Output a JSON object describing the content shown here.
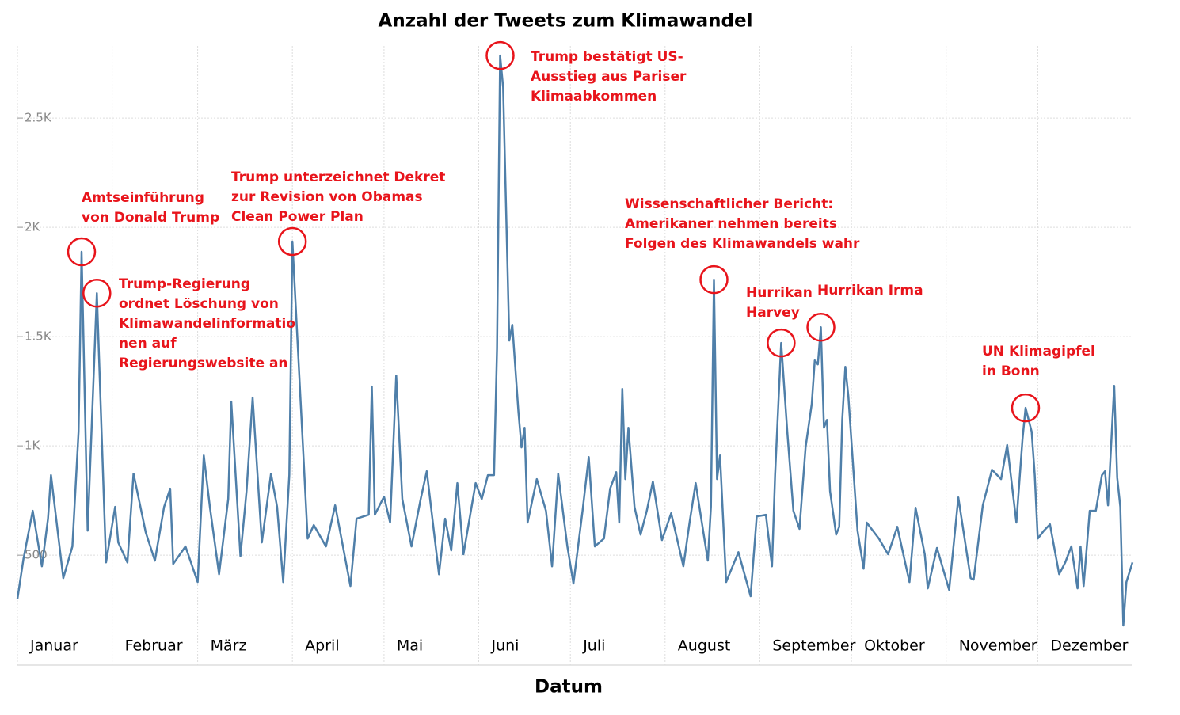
{
  "chart_data": {
    "type": "line",
    "title": "Anzahl der Tweets zum Klimawandel",
    "x_label": "Datum",
    "xlim": [
      0,
      365
    ],
    "ylim": [
      160,
      2830
    ],
    "xticks": [
      {
        "value": 0,
        "label": "Januar"
      },
      {
        "value": 31,
        "label": "Februar"
      },
      {
        "value": 59,
        "label": "März"
      },
      {
        "value": 90,
        "label": "April"
      },
      {
        "value": 120,
        "label": "Mai"
      },
      {
        "value": 151,
        "label": "Juni"
      },
      {
        "value": 181,
        "label": "Juli"
      },
      {
        "value": 212,
        "label": "August"
      },
      {
        "value": 243,
        "label": "September"
      },
      {
        "value": 273,
        "label": "Oktober"
      },
      {
        "value": 304,
        "label": "November"
      },
      {
        "value": 334,
        "label": "Dezember"
      }
    ],
    "yticks": [
      500,
      {
        "value": 1000,
        "label": "1K"
      },
      {
        "value": 1500,
        "label": "1.5K"
      },
      {
        "value": 2000,
        "label": "2K"
      },
      {
        "value": 2500,
        "label": "2.5K"
      }
    ],
    "grid": true,
    "series": [
      {
        "color": "#4f7fa9",
        "x": [
          0,
          2,
          5,
          8,
          10,
          11,
          15,
          18,
          20,
          21,
          23,
          26,
          29,
          32,
          33,
          36,
          38,
          42,
          45,
          48,
          50,
          51,
          55,
          59,
          61,
          63,
          66,
          69,
          70,
          73,
          75,
          77,
          80,
          83,
          85,
          87,
          89,
          90,
          93,
          95,
          97,
          101,
          104,
          109,
          111,
          115,
          116,
          117,
          120,
          122,
          124,
          126,
          129,
          132,
          134,
          138,
          140,
          142,
          144,
          146,
          150,
          152,
          154,
          156,
          157,
          158,
          159,
          161,
          162,
          164,
          165,
          166,
          167,
          170,
          173,
          175,
          177,
          180,
          182,
          185,
          187,
          189,
          192,
          194,
          196,
          197,
          198,
          199,
          200,
          202,
          204,
          206,
          208,
          211,
          214,
          218,
          220,
          222,
          226,
          227,
          228,
          229,
          230,
          232,
          236,
          240,
          242,
          245,
          247,
          248,
          250,
          252,
          254,
          256,
          258,
          260,
          261,
          262,
          263,
          264,
          265,
          266,
          268,
          269,
          270,
          271,
          272,
          275,
          277,
          278,
          282,
          285,
          288,
          292,
          294,
          297,
          298,
          301,
          305,
          308,
          312,
          313,
          316,
          319,
          322,
          324,
          327,
          329,
          330,
          332,
          333,
          334,
          336,
          338,
          341,
          343,
          345,
          347,
          348,
          349,
          351,
          353,
          355,
          356,
          357,
          359,
          360,
          361,
          362,
          363,
          365
        ],
        "values": [
          300,
          485,
          703,
          449,
          667,
          866,
          395,
          540,
          1065,
          1888,
          612,
          1699,
          467,
          721,
          558,
          467,
          873,
          605,
          475,
          721,
          804,
          460,
          540,
          377,
          956,
          721,
          413,
          757,
          1203,
          496,
          793,
          1221,
          558,
          873,
          721,
          377,
          866,
          1935,
          1119,
          576,
          638,
          540,
          728,
          359,
          667,
          685,
          1272,
          685,
          768,
          649,
          1322,
          757,
          540,
          757,
          884,
          413,
          667,
          522,
          830,
          504,
          830,
          757,
          866,
          866,
          1446,
          2786,
          2641,
          1482,
          1554,
          1156,
          993,
          1083,
          649,
          848,
          703,
          449,
          873,
          540,
          370,
          703,
          949,
          540,
          576,
          804,
          880,
          649,
          1261,
          848,
          1083,
          721,
          594,
          703,
          837,
          569,
          692,
          449,
          649,
          830,
          475,
          721,
          1761,
          848,
          956,
          377,
          514,
          312,
          677,
          685,
          449,
          866,
          1471,
          1065,
          703,
          620,
          993,
          1192,
          1391,
          1373,
          1543,
          1083,
          1119,
          793,
          594,
          630,
          1119,
          1362,
          1228,
          612,
          438,
          649,
          576,
          504,
          630,
          377,
          717,
          504,
          348,
          533,
          341,
          764,
          395,
          388,
          728,
          891,
          848,
          1004,
          649,
          1029,
          1174,
          1065,
          866,
          576,
          612,
          641,
          413,
          467,
          540,
          348,
          540,
          359,
          703,
          703,
          866,
          884,
          728,
          1275,
          855,
          721,
          178,
          377,
          467
        ]
      }
    ],
    "annotations": [
      {
        "lines": [
          "Amtseinführung",
          "von Donald Trump"
        ],
        "x": 21,
        "y": 1888
      },
      {
        "lines": [
          "Trump-Regierung",
          "ordnet Löschung von",
          "Klimawandelinformatio",
          "nen auf",
          "Regierungswebsite an"
        ],
        "x": 26,
        "y": 1699
      },
      {
        "lines": [
          "Trump unterzeichnet Dekret",
          "zur Revision von Obamas",
          "Clean Power Plan"
        ],
        "x": 90,
        "y": 1935
      },
      {
        "lines": [
          "Trump bestätigt US-",
          "Ausstieg aus Pariser",
          "Klimaabkommen"
        ],
        "x": 158,
        "y": 2786
      },
      {
        "lines": [
          "Wissenschaftlicher Bericht:",
          "Amerikaner nehmen bereits",
          "Folgen des Klimawandels wahr"
        ],
        "x": 228,
        "y": 1761
      },
      {
        "lines": [
          "Hurrikan",
          "Harvey"
        ],
        "x": 250,
        "y": 1471
      },
      {
        "lines": [
          "Hurrikan Irma"
        ],
        "x": 263,
        "y": 1543
      },
      {
        "lines": [
          "UN Klimagipfel",
          "in Bonn"
        ],
        "x": 330,
        "y": 1174
      }
    ]
  }
}
